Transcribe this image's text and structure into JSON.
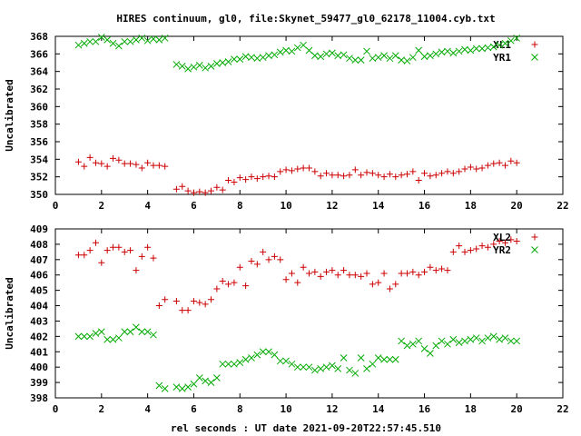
{
  "title": "HIRES continuum, gl0, file:Skynet_59477_gl0_62178_11004.cyb.txt",
  "xlabel": "rel seconds : UT date 2021-09-20T22:57:45.510",
  "chart_data": [
    {
      "type": "scatter",
      "ylabel": "Uncalibrated",
      "xlim": [
        0,
        22
      ],
      "ylim": [
        350,
        368
      ],
      "xticks": [
        0,
        2,
        4,
        6,
        8,
        10,
        12,
        14,
        16,
        18,
        20,
        22
      ],
      "yticks": [
        350,
        352,
        354,
        356,
        358,
        360,
        362,
        364,
        366,
        368
      ],
      "legend_position": "top-right",
      "series": [
        {
          "name": "XL1",
          "color": "#cc0000",
          "marker": "plus",
          "x": [
            1.0,
            1.25,
            1.5,
            1.75,
            2.0,
            2.25,
            2.5,
            2.75,
            3.0,
            3.25,
            3.5,
            3.75,
            4.0,
            4.25,
            4.5,
            4.75,
            5.25,
            5.5,
            5.75,
            6.0,
            6.25,
            6.5,
            6.75,
            7.0,
            7.25,
            7.5,
            7.75,
            8.0,
            8.25,
            8.5,
            8.75,
            9.0,
            9.25,
            9.5,
            9.75,
            10.0,
            10.25,
            10.5,
            10.75,
            11.0,
            11.25,
            11.5,
            11.75,
            12.0,
            12.25,
            12.5,
            12.75,
            13.0,
            13.25,
            13.5,
            13.75,
            14.0,
            14.25,
            14.5,
            14.75,
            15.0,
            15.25,
            15.5,
            15.75,
            16.0,
            16.25,
            16.5,
            16.75,
            17.0,
            17.25,
            17.5,
            17.75,
            18.0,
            18.25,
            18.5,
            18.75,
            19.0,
            19.25,
            19.5,
            19.75,
            20.0
          ],
          "y": [
            353.7,
            353.2,
            354.2,
            353.6,
            353.5,
            353.2,
            354.1,
            353.9,
            353.5,
            353.5,
            353.4,
            353.0,
            353.6,
            353.3,
            353.3,
            353.2,
            350.6,
            350.9,
            350.4,
            350.2,
            350.3,
            350.2,
            350.4,
            350.8,
            350.5,
            351.6,
            351.4,
            351.9,
            351.7,
            352.0,
            351.8,
            352.0,
            352.1,
            352.0,
            352.6,
            352.8,
            352.7,
            352.9,
            353.0,
            353.0,
            352.6,
            352.1,
            352.4,
            352.2,
            352.2,
            352.1,
            352.2,
            352.8,
            352.2,
            352.5,
            352.4,
            352.2,
            352.0,
            352.3,
            352.0,
            352.2,
            352.3,
            352.6,
            351.6,
            352.4,
            352.1,
            352.2,
            352.4,
            352.6,
            352.4,
            352.6,
            352.9,
            353.1,
            352.9,
            353.0,
            353.3,
            353.5,
            353.6,
            353.3,
            353.8,
            353.6
          ]
        },
        {
          "name": "YR1",
          "color": "#00aa00",
          "marker": "cross",
          "x": [
            1.0,
            1.25,
            1.5,
            1.75,
            2.0,
            2.25,
            2.5,
            2.75,
            3.0,
            3.25,
            3.5,
            3.75,
            4.0,
            4.25,
            4.5,
            4.75,
            5.25,
            5.5,
            5.75,
            6.0,
            6.25,
            6.5,
            6.75,
            7.0,
            7.25,
            7.5,
            7.75,
            8.0,
            8.25,
            8.5,
            8.75,
            9.0,
            9.25,
            9.5,
            9.75,
            10.0,
            10.25,
            10.5,
            10.75,
            11.0,
            11.25,
            11.5,
            11.75,
            12.0,
            12.25,
            12.5,
            12.75,
            13.0,
            13.25,
            13.5,
            13.75,
            14.0,
            14.25,
            14.5,
            14.75,
            15.0,
            15.25,
            15.5,
            15.75,
            16.0,
            16.25,
            16.5,
            16.75,
            17.0,
            17.25,
            17.5,
            17.75,
            18.0,
            18.25,
            18.5,
            18.75,
            19.0,
            19.25,
            19.5,
            19.75,
            20.0
          ],
          "y": [
            367.0,
            367.2,
            367.4,
            367.4,
            367.9,
            367.6,
            367.2,
            366.9,
            367.4,
            367.4,
            367.6,
            367.8,
            367.5,
            367.7,
            367.6,
            367.8,
            364.8,
            364.6,
            364.3,
            364.5,
            364.7,
            364.4,
            364.6,
            364.9,
            365.0,
            365.1,
            365.4,
            365.4,
            365.7,
            365.6,
            365.5,
            365.6,
            365.8,
            365.9,
            366.2,
            366.4,
            366.3,
            366.7,
            367.0,
            366.4,
            365.8,
            365.7,
            366.0,
            366.1,
            365.8,
            365.9,
            365.5,
            365.3,
            365.3,
            366.3,
            365.5,
            365.6,
            365.8,
            365.5,
            365.8,
            365.3,
            365.2,
            365.6,
            366.4,
            365.7,
            365.8,
            366.0,
            366.2,
            366.3,
            366.1,
            366.3,
            366.5,
            366.4,
            366.6,
            366.6,
            366.7,
            366.8,
            367.0,
            367.2,
            367.5,
            367.8
          ]
        }
      ]
    },
    {
      "type": "scatter",
      "ylabel": "Uncalibrated",
      "xlim": [
        0,
        22
      ],
      "ylim": [
        398,
        409
      ],
      "xticks": [
        0,
        2,
        4,
        6,
        8,
        10,
        12,
        14,
        16,
        18,
        20,
        22
      ],
      "yticks": [
        398,
        399,
        400,
        401,
        402,
        403,
        404,
        405,
        406,
        407,
        408,
        409
      ],
      "legend_position": "top-right",
      "series": [
        {
          "name": "XL2",
          "color": "#cc0000",
          "marker": "plus",
          "x": [
            1.0,
            1.25,
            1.5,
            1.75,
            2.0,
            2.25,
            2.5,
            2.75,
            3.0,
            3.25,
            3.5,
            3.75,
            4.0,
            4.25,
            4.5,
            4.75,
            5.25,
            5.5,
            5.75,
            6.0,
            6.25,
            6.5,
            6.75,
            7.0,
            7.25,
            7.5,
            7.75,
            8.0,
            8.25,
            8.5,
            8.75,
            9.0,
            9.25,
            9.5,
            9.75,
            10.0,
            10.25,
            10.5,
            10.75,
            11.0,
            11.25,
            11.5,
            11.75,
            12.0,
            12.25,
            12.5,
            12.75,
            13.0,
            13.25,
            13.5,
            13.75,
            14.0,
            14.25,
            14.5,
            14.75,
            15.0,
            15.25,
            15.5,
            15.75,
            16.0,
            16.25,
            16.5,
            16.75,
            17.0,
            17.25,
            17.5,
            17.75,
            18.0,
            18.25,
            18.5,
            18.75,
            19.0,
            19.25,
            19.5,
            19.75,
            20.0
          ],
          "y": [
            407.3,
            407.3,
            407.6,
            408.1,
            406.8,
            407.6,
            407.8,
            407.8,
            407.5,
            407.6,
            406.3,
            407.2,
            407.8,
            407.1,
            404.0,
            404.4,
            404.3,
            403.7,
            403.7,
            404.3,
            404.2,
            404.1,
            404.4,
            405.1,
            405.6,
            405.4,
            405.5,
            406.5,
            405.3,
            406.9,
            406.7,
            407.5,
            407.0,
            407.2,
            407.0,
            405.7,
            406.1,
            405.5,
            406.5,
            406.1,
            406.2,
            405.9,
            406.2,
            406.3,
            406.0,
            406.3,
            406.0,
            406.0,
            405.9,
            406.1,
            405.4,
            405.5,
            406.1,
            405.1,
            405.4,
            406.1,
            406.1,
            406.2,
            406.0,
            406.2,
            406.5,
            406.3,
            406.4,
            406.3,
            407.5,
            407.9,
            407.5,
            407.6,
            407.7,
            407.9,
            407.8,
            408.0,
            408.2,
            408.1,
            408.3,
            408.2
          ]
        },
        {
          "name": "YR2",
          "color": "#00aa00",
          "marker": "cross",
          "x": [
            1.0,
            1.25,
            1.5,
            1.75,
            2.0,
            2.25,
            2.5,
            2.75,
            3.0,
            3.25,
            3.5,
            3.75,
            4.0,
            4.25,
            4.5,
            4.75,
            5.25,
            5.5,
            5.75,
            6.0,
            6.25,
            6.5,
            6.75,
            7.0,
            7.25,
            7.5,
            7.75,
            8.0,
            8.25,
            8.5,
            8.75,
            9.0,
            9.25,
            9.5,
            9.75,
            10.0,
            10.25,
            10.5,
            10.75,
            11.0,
            11.25,
            11.5,
            11.75,
            12.0,
            12.25,
            12.5,
            12.75,
            13.0,
            13.25,
            13.5,
            13.75,
            14.0,
            14.25,
            14.5,
            14.75,
            15.0,
            15.25,
            15.5,
            15.75,
            16.0,
            16.25,
            16.5,
            16.75,
            17.0,
            17.25,
            17.5,
            17.75,
            18.0,
            18.25,
            18.5,
            18.75,
            19.0,
            19.25,
            19.5,
            19.75,
            20.0
          ],
          "y": [
            402.0,
            402.0,
            402.0,
            402.2,
            402.3,
            401.8,
            401.8,
            401.9,
            402.3,
            402.3,
            402.6,
            402.3,
            402.3,
            402.1,
            398.8,
            398.6,
            398.7,
            398.6,
            398.7,
            398.9,
            399.3,
            399.1,
            399.0,
            399.3,
            400.2,
            400.2,
            400.2,
            400.3,
            400.5,
            400.6,
            400.8,
            401.0,
            401.0,
            400.8,
            400.4,
            400.4,
            400.2,
            400.0,
            400.0,
            400.0,
            399.8,
            399.9,
            400.0,
            400.1,
            399.9,
            400.6,
            399.8,
            399.6,
            400.6,
            399.9,
            400.2,
            400.6,
            400.5,
            400.5,
            400.5,
            401.7,
            401.4,
            401.5,
            401.7,
            401.2,
            400.9,
            401.4,
            401.7,
            401.5,
            401.8,
            401.6,
            401.7,
            401.8,
            401.9,
            401.7,
            401.9,
            402.0,
            401.8,
            401.9,
            401.7,
            401.7
          ]
        }
      ]
    }
  ]
}
